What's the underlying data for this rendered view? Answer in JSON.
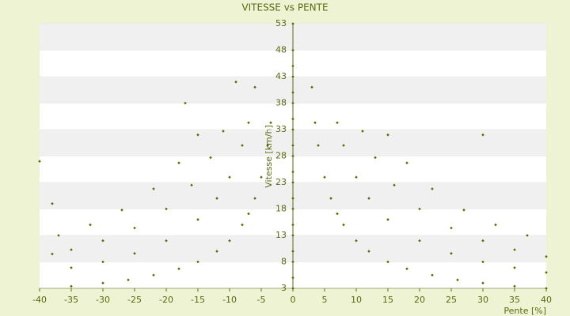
{
  "chart_data": {
    "type": "scatter",
    "title": "VITESSE vs PENTE",
    "x_label": "Pente [%]",
    "y_label": "Vitesse [km/h]",
    "color": "#5b6b00",
    "x": [
      0,
      0,
      0,
      0,
      0,
      0,
      0,
      0,
      0,
      0,
      0,
      0,
      0,
      0,
      0,
      0,
      0,
      0,
      0,
      0,
      3.5,
      4,
      5,
      6,
      7,
      8,
      10,
      12,
      15,
      18,
      22,
      26,
      30,
      35,
      40,
      -3.5,
      -4,
      -5,
      -6,
      -7,
      -8,
      -10,
      -12,
      -15,
      -18,
      -22,
      -26,
      -30,
      -35,
      7,
      8,
      10,
      12,
      15,
      20,
      25,
      30,
      35,
      40,
      -7,
      -8,
      -10,
      -12,
      -15,
      -20,
      -25,
      -30,
      -35,
      11,
      13,
      16,
      20,
      25,
      30,
      35,
      40,
      -11,
      -13,
      -16,
      -20,
      -25,
      -30,
      -35,
      -38,
      15,
      18,
      22,
      27,
      32,
      37,
      -15,
      -18,
      -22,
      -27,
      -32,
      -37,
      -9,
      -6,
      -17,
      3,
      30,
      -38,
      -40
    ],
    "values": [
      3,
      5,
      8,
      10,
      13,
      15,
      18,
      20,
      23,
      25,
      28,
      30,
      33,
      35,
      38,
      40,
      43,
      45,
      48,
      53,
      34.3,
      30,
      24,
      20,
      17.1,
      15,
      12,
      10,
      8,
      6.7,
      5.5,
      4.6,
      4,
      3.4,
      3,
      34.3,
      30,
      24,
      20,
      17.1,
      15,
      12,
      10,
      8,
      6.7,
      5.5,
      4.6,
      4,
      3.4,
      34.3,
      30,
      24,
      20,
      16,
      12,
      9.6,
      8,
      6.9,
      6,
      34.3,
      30,
      24,
      20,
      16,
      12,
      9.6,
      8,
      6.9,
      32.7,
      27.7,
      22.5,
      18,
      14.4,
      12,
      10.3,
      9,
      32.7,
      27.7,
      22.5,
      18,
      14.4,
      12,
      10.3,
      9.5,
      32,
      26.7,
      21.8,
      17.8,
      15,
      13,
      32,
      26.7,
      21.8,
      17.8,
      15,
      13,
      42,
      41,
      38,
      41,
      32,
      19,
      27
    ],
    "xlim": [
      -40,
      40
    ],
    "xticks": [
      -40,
      -35,
      -30,
      -25,
      -20,
      -15,
      -10,
      -5,
      0,
      5,
      10,
      15,
      20,
      25,
      30,
      35,
      40
    ],
    "ylim": [
      3,
      53
    ],
    "yticks": [
      3,
      8,
      13,
      18,
      23,
      28,
      33,
      38,
      43,
      48,
      53
    ],
    "grid": true
  }
}
